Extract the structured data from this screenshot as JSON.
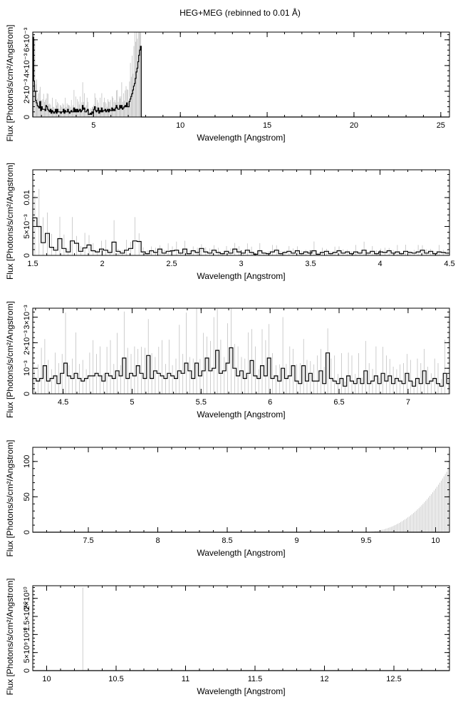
{
  "figure": {
    "title": "HEG+MEG (rebinned to 0.01 Å)"
  },
  "chart_data": [
    {
      "type": "line",
      "xlabel": "Wavelength [Angstrom]",
      "ylabel": "Flux [Photons/s/cm²/Angstrom]",
      "xlim": [
        1.5,
        25.5
      ],
      "ylim": [
        0,
        0.0066
      ],
      "x_ticks": [
        5,
        10,
        15,
        20,
        25
      ],
      "x_tick_labels": [
        "5",
        "10",
        "15",
        "20",
        "25"
      ],
      "y_ticks": [
        0,
        0.002,
        0.004,
        0.006
      ],
      "y_tick_labels": [
        "0",
        "2×10⁻³",
        "4×10⁻³",
        "6×10⁻³"
      ],
      "spectrum": {
        "x_start": 1.5,
        "x_step": 0.05,
        "values": [
          0.0062,
          0.0028,
          0.002,
          0.0013,
          0.0011,
          0.0009,
          0.0008,
          0.0007,
          0.0012,
          0.0005,
          0.0008,
          0.0006,
          0.0006,
          0.0006,
          0.0005,
          0.0009,
          0.0008,
          0.0006,
          0.0005,
          0.0004,
          0.0006,
          0.0003,
          0.0005,
          0.0004,
          0.0003,
          0.0004,
          0.0006,
          0.0003,
          0.0006,
          0.0004,
          0.0004,
          0.0004,
          0.0003,
          0.0004,
          0.0004,
          0.0006,
          0.0003,
          0.0005,
          0.0004,
          0.0004,
          0.0006,
          0.0004,
          0.0003,
          0.0004,
          0.0005,
          0.0004,
          0.0004,
          0.0007,
          0.0004,
          0.0006,
          0.0004,
          0.0006,
          0.0004,
          0.0005,
          0.0006,
          0.0004,
          0.0005,
          0.0009,
          0.0006,
          0.0007,
          0.0004,
          0.0004,
          0.0005,
          0.0006,
          0.0002,
          0.0002,
          0.0003,
          0.0002,
          0.0004,
          0.0003,
          0.0006,
          0.0008,
          0.0005,
          0.0004,
          0.0005,
          0.0007,
          0.0003,
          0.0005,
          0.0004,
          0.0007,
          0.0004,
          0.0005,
          0.0005,
          0.0006,
          0.0004,
          0.0005,
          0.0006,
          0.0004,
          0.0006,
          0.0005,
          0.0005,
          0.0007,
          0.0005,
          0.0006,
          0.0005,
          0.0007,
          0.0009,
          0.0007,
          0.0006,
          0.0006,
          0.0009,
          0.0007,
          0.0009,
          0.0006,
          0.0007,
          0.0008,
          0.0009,
          0.0008,
          0.0011,
          0.0008,
          0.0008,
          0.0012,
          0.0014,
          0.0016,
          0.0018,
          0.0021,
          0.0024,
          0.0026,
          0.003,
          0.0035,
          0.0038,
          0.0043,
          0.0048,
          0.0052,
          0.0055,
          0.0,
          0.0,
          0.0,
          0.0,
          0.0
        ],
        "tail_value": 0.0,
        "tail_to": 25.5
      }
    },
    {
      "type": "line",
      "xlabel": "Wavelength [Angstrom]",
      "ylabel": "Flux [Photons/s/cm²/Angstrom]",
      "xlim": [
        1.5,
        4.5
      ],
      "ylim": [
        0,
        0.0148
      ],
      "x_ticks": [
        1.5,
        2,
        2.5,
        3,
        3.5,
        4,
        4.5
      ],
      "x_tick_labels": [
        "1.5",
        "2",
        "2.5",
        "3",
        "3.5",
        "4",
        "4.5"
      ],
      "y_ticks": [
        0,
        0.005,
        0.01
      ],
      "y_tick_labels": [
        "0",
        "5×10⁻³",
        "0.01"
      ],
      "spectrum": {
        "x_start": 1.5,
        "x_step": 0.03,
        "values": [
          0.0065,
          0.005,
          0.0022,
          0.0038,
          0.0014,
          0.0009,
          0.0029,
          0.0012,
          0.0006,
          0.0025,
          0.0021,
          0.0007,
          0.0013,
          0.0018,
          0.0008,
          0.0006,
          0.0011,
          0.0009,
          0.0005,
          0.0023,
          0.0007,
          0.0004,
          0.0009,
          0.0012,
          0.0025,
          0.0024,
          0.0006,
          0.0003,
          0.0008,
          0.0005,
          0.0011,
          0.0004,
          0.0007,
          0.0008,
          0.0009,
          0.0004,
          0.0011,
          0.0003,
          0.0008,
          0.0005,
          0.0012,
          0.0006,
          0.0004,
          0.0009,
          0.0005,
          0.0003,
          0.0007,
          0.0004,
          0.0011,
          0.0006,
          0.0004,
          0.0009,
          0.0005,
          0.0002,
          0.0008,
          0.0004,
          0.0003,
          0.0006,
          0.0009,
          0.0003,
          0.0005,
          0.0007,
          0.0004,
          0.0008,
          0.0003,
          0.0006,
          0.0004,
          0.0008,
          0.0002,
          0.0005,
          0.0007,
          0.0003,
          0.0005,
          0.0008,
          0.0004,
          0.0006,
          0.0003,
          0.0006,
          0.0004,
          0.0009,
          0.0004,
          0.0007,
          0.0003,
          0.0006,
          0.0005,
          0.0008,
          0.0004,
          0.0006,
          0.0003,
          0.0007,
          0.0005,
          0.0004,
          0.0006,
          0.0009,
          0.0004,
          0.0007,
          0.0003,
          0.0006,
          0.0005,
          0.0004
        ],
        "tail_value": 0.0005,
        "tail_to": 4.5
      }
    },
    {
      "type": "line",
      "xlabel": "Wavelength [Angstrom]",
      "ylabel": "Flux [Photons/s/cm²/Angstrom]",
      "xlim": [
        4.28,
        7.3
      ],
      "ylim": [
        0,
        0.00335
      ],
      "x_ticks": [
        4.5,
        5,
        5.5,
        6,
        6.5,
        7
      ],
      "x_tick_labels": [
        "4.5",
        "5",
        "5.5",
        "6",
        "6.5",
        "7"
      ],
      "y_ticks": [
        0,
        0.001,
        0.002,
        0.003
      ],
      "y_tick_labels": [
        "0",
        "10⁻³",
        "2×10⁻³",
        "3×10⁻³"
      ],
      "spectrum": {
        "x_start": 4.28,
        "x_step": 0.025,
        "values": [
          0.0006,
          0.0005,
          0.0006,
          0.0011,
          0.0005,
          0.0006,
          0.0007,
          0.0004,
          0.0008,
          0.0012,
          0.0007,
          0.0006,
          0.0008,
          0.0006,
          0.0005,
          0.0006,
          0.0007,
          0.0007,
          0.0008,
          0.0007,
          0.0005,
          0.0008,
          0.0007,
          0.0006,
          0.0009,
          0.0007,
          0.0014,
          0.0006,
          0.0008,
          0.0007,
          0.0011,
          0.0008,
          0.0006,
          0.0015,
          0.0006,
          0.0009,
          0.0008,
          0.0007,
          0.0006,
          0.0008,
          0.0007,
          0.0006,
          0.0009,
          0.0008,
          0.0012,
          0.0009,
          0.0006,
          0.0012,
          0.0007,
          0.0009,
          0.0014,
          0.0009,
          0.001,
          0.0017,
          0.0008,
          0.0009,
          0.0012,
          0.0018,
          0.001,
          0.0007,
          0.0009,
          0.0006,
          0.0008,
          0.0013,
          0.0007,
          0.0006,
          0.0011,
          0.0007,
          0.0014,
          0.0006,
          0.0007,
          0.0005,
          0.001,
          0.0006,
          0.0007,
          0.0011,
          0.0005,
          0.0004,
          0.0011,
          0.0005,
          0.0008,
          0.0005,
          0.0005,
          0.0009,
          0.0004,
          0.0016,
          0.0006,
          0.0005,
          0.0004,
          0.0006,
          0.0003,
          0.0007,
          0.0005,
          0.0004,
          0.0006,
          0.0004,
          0.0009,
          0.0004,
          0.0005,
          0.0007,
          0.0004,
          0.0008,
          0.0005,
          0.0007,
          0.0004,
          0.0006,
          0.0005,
          0.0004,
          0.0008,
          0.0005,
          0.0003,
          0.0006,
          0.0004,
          0.0009,
          0.0004,
          0.0005,
          0.0006,
          0.0004,
          0.0003,
          0.0008,
          0.0004
        ],
        "tail_value": 0.0004,
        "tail_to": 7.3
      }
    },
    {
      "type": "line",
      "xlabel": "Wavelength [Angstrom]",
      "ylabel": "Flux [Photons/s/cm²/Angstrom]",
      "xlim": [
        7.1,
        10.1
      ],
      "ylim": [
        0,
        120
      ],
      "x_ticks": [
        7.5,
        8,
        8.5,
        9,
        9.5,
        10
      ],
      "x_tick_labels": [
        "7.5",
        "8",
        "8.5",
        "9",
        "9.5",
        "10"
      ],
      "y_ticks": [
        0,
        50,
        100
      ],
      "y_tick_labels": [
        "0",
        "50",
        "100"
      ],
      "spectrum": {
        "x_start": 7.1,
        "x_step": 0.05,
        "values": [
          0.0001,
          0.0001,
          0.0001,
          0.0001,
          0.0001,
          0.0001,
          0.0001,
          0.0001,
          0.0001,
          0.0001,
          0.0001,
          0.0001,
          0.0001,
          0.0001,
          0.0001,
          0.0001,
          0.0001,
          0.0001,
          0.0001,
          0.0001,
          0.0001,
          0.0001,
          0.0001,
          0.0001,
          0.0001,
          0.0001,
          0.0001,
          0.0001,
          0.0001,
          0.0001,
          0.0001,
          0.0001,
          0.0001,
          0.0001,
          0.0001,
          0.0001,
          0.0001,
          0.0001,
          0.0001,
          0.0001,
          0.0001,
          0.0001,
          0.0001,
          0.0001,
          0.0001,
          0.0001,
          0.0001,
          0.0001,
          0.0001,
          0.0001,
          0.0001,
          0.0001,
          0.0001,
          0.0001,
          0.0001,
          0.0001,
          0.0001,
          0.0001,
          0.0001,
          0.0001
        ],
        "tail_value": 0.0001,
        "tail_to": 10.1
      }
    },
    {
      "type": "line",
      "xlabel": "Wavelength [Angstrom]",
      "ylabel": "Flux [Photons/s/cm²/Angstrom]",
      "xlim": [
        9.9,
        12.9
      ],
      "ylim": [
        0,
        23500000000.0
      ],
      "x_ticks": [
        10,
        10.5,
        11,
        11.5,
        12,
        12.5
      ],
      "x_tick_labels": [
        "10",
        "10.5",
        "11",
        "11.5",
        "12",
        "12.5"
      ],
      "y_ticks": [
        0,
        5000000000.0,
        10000000000.0,
        15000000000.0,
        20000000000.0
      ],
      "y_tick_labels": [
        "0",
        "5×10⁹",
        "10¹⁰",
        "1.5×10¹⁰",
        "2×10¹⁰"
      ],
      "spectrum": {
        "x_start": 9.9,
        "x_step": 0.05,
        "values": [],
        "tail_value": 0,
        "tail_to": 12.9
      }
    }
  ]
}
